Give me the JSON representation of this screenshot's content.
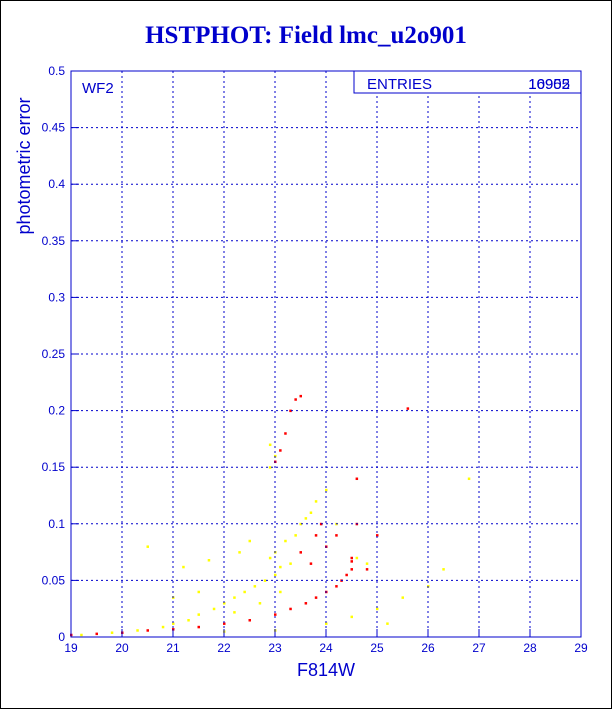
{
  "chart_data": {
    "type": "scatter",
    "title": "HSTPHOT: Field lmc_u2o901",
    "xlabel": "F814W",
    "ylabel": "photometric error",
    "xlim": [
      19,
      29
    ],
    "ylim": [
      0,
      0.5
    ],
    "x_ticks": [
      "19",
      "20",
      "21",
      "22",
      "23",
      "24",
      "25",
      "26",
      "27",
      "28",
      "29"
    ],
    "y_ticks": [
      "0",
      "0.05",
      "0.1",
      "0.15",
      "0.2",
      "0.25",
      "0.3",
      "0.35",
      "0.4",
      "0.45",
      "0.5"
    ],
    "grid": true,
    "panel_label": "WF2",
    "stats_box": {
      "label": "ENTRIES",
      "values": [
        "16905",
        "10952"
      ]
    },
    "series": [
      {
        "color": "#ffff00",
        "points": [
          [
            19.2,
            0.002
          ],
          [
            19.8,
            0.004
          ],
          [
            20.3,
            0.006
          ],
          [
            20.8,
            0.009
          ],
          [
            21.0,
            0.012
          ],
          [
            21.3,
            0.015
          ],
          [
            21.5,
            0.02
          ],
          [
            21.8,
            0.025
          ],
          [
            22.0,
            0.03
          ],
          [
            22.2,
            0.035
          ],
          [
            22.4,
            0.04
          ],
          [
            22.6,
            0.045
          ],
          [
            22.8,
            0.05
          ],
          [
            23.0,
            0.055
          ],
          [
            23.1,
            0.062
          ],
          [
            23.3,
            0.065
          ],
          [
            22.9,
            0.07
          ],
          [
            23.0,
            0.075
          ],
          [
            23.2,
            0.085
          ],
          [
            23.4,
            0.09
          ],
          [
            23.5,
            0.1
          ],
          [
            23.6,
            0.105
          ],
          [
            23.7,
            0.11
          ],
          [
            22.9,
            0.15
          ],
          [
            23.0,
            0.16
          ],
          [
            22.9,
            0.17
          ],
          [
            21.2,
            0.062
          ],
          [
            20.5,
            0.08
          ],
          [
            21.7,
            0.068
          ],
          [
            22.3,
            0.075
          ],
          [
            22.5,
            0.085
          ],
          [
            23.8,
            0.12
          ],
          [
            24.0,
            0.13
          ],
          [
            24.2,
            0.1
          ],
          [
            24.6,
            0.07
          ],
          [
            24.8,
            0.065
          ],
          [
            22.0,
            0.005
          ],
          [
            23.0,
            0.006
          ],
          [
            24.0,
            0.012
          ],
          [
            24.5,
            0.018
          ],
          [
            25.0,
            0.025
          ],
          [
            25.5,
            0.035
          ],
          [
            26.0,
            0.045
          ],
          [
            26.3,
            0.06
          ],
          [
            26.8,
            0.14
          ],
          [
            25.2,
            0.012
          ],
          [
            21.0,
            0.035
          ],
          [
            21.5,
            0.04
          ],
          [
            22.2,
            0.022
          ],
          [
            22.7,
            0.03
          ],
          [
            23.1,
            0.04
          ]
        ]
      },
      {
        "color": "#ff0000",
        "points": [
          [
            19.0,
            0.002
          ],
          [
            19.5,
            0.003
          ],
          [
            20.0,
            0.004
          ],
          [
            20.5,
            0.006
          ],
          [
            21.0,
            0.007
          ],
          [
            21.5,
            0.009
          ],
          [
            22.0,
            0.012
          ],
          [
            22.5,
            0.015
          ],
          [
            23.0,
            0.02
          ],
          [
            23.3,
            0.025
          ],
          [
            23.6,
            0.03
          ],
          [
            23.8,
            0.035
          ],
          [
            24.0,
            0.04
          ],
          [
            24.2,
            0.045
          ],
          [
            24.3,
            0.05
          ],
          [
            24.4,
            0.055
          ],
          [
            24.5,
            0.06
          ],
          [
            24.5,
            0.067
          ],
          [
            23.0,
            0.155
          ],
          [
            23.1,
            0.165
          ],
          [
            23.2,
            0.18
          ],
          [
            23.3,
            0.2
          ],
          [
            23.4,
            0.21
          ],
          [
            23.5,
            0.213
          ],
          [
            23.8,
            0.09
          ],
          [
            24.0,
            0.08
          ],
          [
            24.2,
            0.09
          ],
          [
            24.5,
            0.07
          ],
          [
            24.8,
            0.06
          ],
          [
            25.0,
            0.09
          ],
          [
            25.6,
            0.202
          ],
          [
            23.5,
            0.075
          ],
          [
            23.7,
            0.065
          ],
          [
            24.6,
            0.14
          ],
          [
            24.6,
            0.1
          ],
          [
            23.9,
            0.1
          ]
        ]
      }
    ]
  }
}
